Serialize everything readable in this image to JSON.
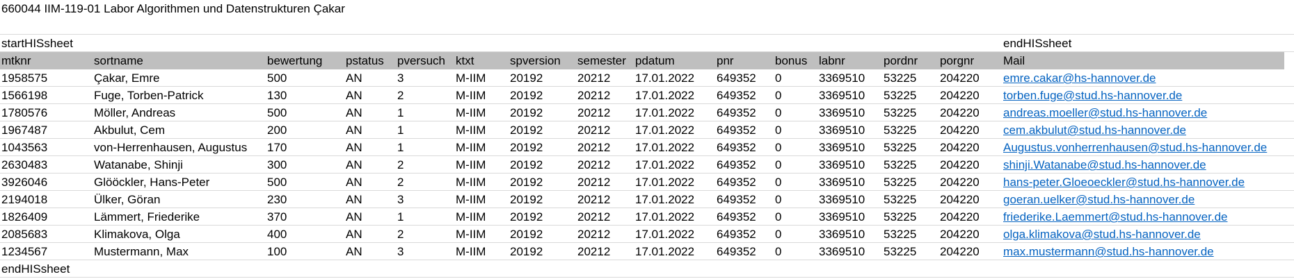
{
  "title_row": "660044  IIM-119-01  Labor Algorithmen und Datenstrukturen  Çakar",
  "markers": {
    "start": "startHISsheet",
    "end_top": "endHISsheet",
    "end_bottom": "endHISsheet"
  },
  "columns": [
    "mtknr",
    "sortname",
    "bewertung",
    "pstatus",
    "pversuch",
    "ktxt",
    "spversion",
    "semester",
    "pdatum",
    "pnr",
    "bonus",
    "labnr",
    "pordnr",
    "porgnr",
    "Mail"
  ],
  "rows": [
    [
      "1958575",
      "Çakar, Emre",
      "500",
      "AN",
      "3",
      "M-IIM",
      "20192",
      "20212",
      "17.01.2022",
      "649352",
      "0",
      "3369510",
      "53225",
      "204220",
      "emre.cakar@hs-hannover.de"
    ],
    [
      "1566198",
      "Fuge, Torben-Patrick",
      "130",
      "AN",
      "2",
      "M-IIM",
      "20192",
      "20212",
      "17.01.2022",
      "649352",
      "0",
      "3369510",
      "53225",
      "204220",
      "torben.fuge@stud.hs-hannover.de"
    ],
    [
      "1780576",
      "Möller, Andreas",
      "500",
      "AN",
      "1",
      "M-IIM",
      "20192",
      "20212",
      "17.01.2022",
      "649352",
      "0",
      "3369510",
      "53225",
      "204220",
      "andreas.moeller@stud.hs-hannover.de"
    ],
    [
      "1967487",
      "Akbulut, Cem",
      "200",
      "AN",
      "1",
      "M-IIM",
      "20192",
      "20212",
      "17.01.2022",
      "649352",
      "0",
      "3369510",
      "53225",
      "204220",
      "cem.akbulut@stud.hs-hannover.de"
    ],
    [
      "1043563",
      "von-Herrenhausen, Augustus",
      "170",
      "AN",
      "1",
      "M-IIM",
      "20192",
      "20212",
      "17.01.2022",
      "649352",
      "0",
      "3369510",
      "53225",
      "204220",
      "Augustus.vonherrenhausen@stud.hs-hannover.de"
    ],
    [
      "2630483",
      "Watanabe, Shinji",
      "300",
      "AN",
      "2",
      "M-IIM",
      "20192",
      "20212",
      "17.01.2022",
      "649352",
      "0",
      "3369510",
      "53225",
      "204220",
      "shinji.Watanabe@stud.hs-hannover.de"
    ],
    [
      "3926046",
      "Glööckler, Hans-Peter",
      "500",
      "AN",
      "2",
      "M-IIM",
      "20192",
      "20212",
      "17.01.2022",
      "649352",
      "0",
      "3369510",
      "53225",
      "204220",
      "hans-peter.Gloeoeckler@stud.hs-hannover.de"
    ],
    [
      "2194018",
      "Ülker, Göran",
      "230",
      "AN",
      "3",
      "M-IIM",
      "20192",
      "20212",
      "17.01.2022",
      "649352",
      "0",
      "3369510",
      "53225",
      "204220",
      "goeran.uelker@stud.hs-hannover.de"
    ],
    [
      "1826409",
      "Lämmert, Friederike",
      "370",
      "AN",
      "1",
      "M-IIM",
      "20192",
      "20212",
      "17.01.2022",
      "649352",
      "0",
      "3369510",
      "53225",
      "204220",
      "friederike.Laemmert@stud.hs-hannover.de"
    ],
    [
      "2085683",
      "Klimakova, Olga",
      "400",
      "AN",
      "2",
      "M-IIM",
      "20192",
      "20212",
      "17.01.2022",
      "649352",
      "0",
      "3369510",
      "53225",
      "204220",
      "olga.klimakova@stud.hs-hannover.de"
    ],
    [
      "1234567",
      "Mustermann, Max",
      "100",
      "AN",
      "3",
      "M-IIM",
      "20192",
      "20212",
      "17.01.2022",
      "649352",
      "0",
      "3369510",
      "53225",
      "204220",
      "max.mustermann@stud.hs-hannover.de"
    ]
  ],
  "colors": {
    "header_fill": "#bfbfbf",
    "gridline": "#d9d9d9",
    "hyperlink": "#0563c1"
  }
}
